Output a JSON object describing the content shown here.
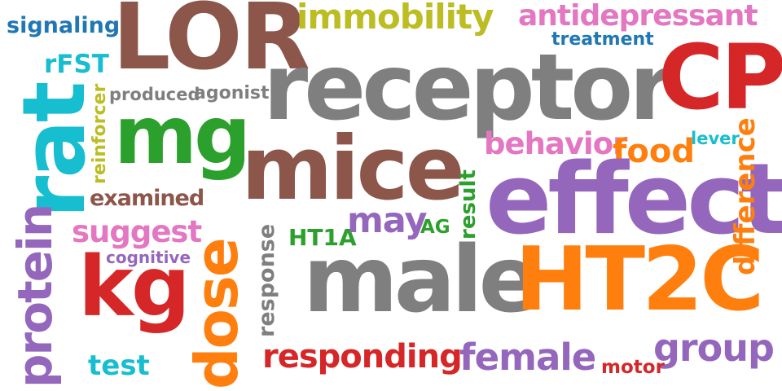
{
  "words": {
    "signaling": {
      "text": "signaling",
      "color": "#1f77b4"
    },
    "LOR": {
      "text": "LOR",
      "color": "#8c564b"
    },
    "immobility": {
      "text": "immobility",
      "color": "#bcbd22"
    },
    "antidepressant": {
      "text": "antidepressant",
      "color": "#e377c2"
    },
    "treatment": {
      "text": "treatment",
      "color": "#1f77b4"
    },
    "rFST": {
      "text": "rFST",
      "color": "#17becf"
    },
    "receptor": {
      "text": "receptor",
      "color": "#7f7f7f"
    },
    "CP": {
      "text": "CP",
      "color": "#d62728"
    },
    "produced": {
      "text": "produced",
      "color": "#7f7f7f"
    },
    "agonist": {
      "text": "agonist",
      "color": "#7f7f7f"
    },
    "mg": {
      "text": "mg",
      "color": "#2ca02c"
    },
    "mice": {
      "text": "mice",
      "color": "#8c564b"
    },
    "behavior": {
      "text": "behavior",
      "color": "#e377c2"
    },
    "food": {
      "text": "food",
      "color": "#ff7f0e"
    },
    "lever": {
      "text": "lever",
      "color": "#17becf"
    },
    "rat": {
      "text": "rat",
      "color": "#17becf"
    },
    "reinforcer": {
      "text": "reinforcer",
      "color": "#bcbd22"
    },
    "examined": {
      "text": "examined",
      "color": "#8c564b"
    },
    "effect": {
      "text": "effect",
      "color": "#9467bd"
    },
    "difference": {
      "text": "difference",
      "color": "#ff7f0e"
    },
    "protein": {
      "text": "protein",
      "color": "#9467bd"
    },
    "suggest": {
      "text": "suggest",
      "color": "#e377c2"
    },
    "dose": {
      "text": "dose",
      "color": "#ff7f0e"
    },
    "response": {
      "text": "response",
      "color": "#7f7f7f"
    },
    "HT1A": {
      "text": "HT1A",
      "color": "#2ca02c"
    },
    "may": {
      "text": "may",
      "color": "#9467bd"
    },
    "AG": {
      "text": "AG",
      "color": "#2ca02c"
    },
    "result": {
      "text": "result",
      "color": "#2ca02c"
    },
    "cognitive": {
      "text": "cognitive",
      "color": "#9467bd"
    },
    "kg": {
      "text": "kg",
      "color": "#d62728"
    },
    "male": {
      "text": "male",
      "color": "#7f7f7f"
    },
    "HT2C": {
      "text": "HT2C",
      "color": "#ff7f0e"
    },
    "group": {
      "text": "group",
      "color": "#9467bd"
    },
    "responding": {
      "text": "responding",
      "color": "#d62728"
    },
    "female": {
      "text": "female",
      "color": "#9467bd"
    },
    "motor": {
      "text": "motor",
      "color": "#d62728"
    },
    "test": {
      "text": "test",
      "color": "#17becf"
    }
  }
}
